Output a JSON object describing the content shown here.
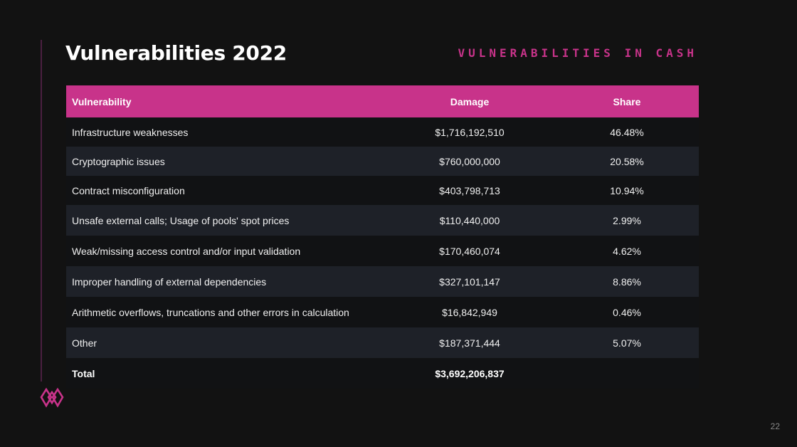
{
  "slide": {
    "title": "Vulnerabilities 2022",
    "subtitle": "VULNERABILITIES IN CASH",
    "page_number": "22",
    "accent_color": "#c8338a",
    "background_color": "#121212",
    "logo_icon": "diamond-lattice-logo-icon"
  },
  "table": {
    "headers": {
      "vulnerability": "Vulnerability",
      "damage": "Damage",
      "share": "Share"
    },
    "rows": [
      {
        "vulnerability": "Infrastructure weaknesses",
        "damage": "$1,716,192,510",
        "share": "46.48%"
      },
      {
        "vulnerability": "Cryptographic issues",
        "damage": "$760,000,000",
        "share": "20.58%"
      },
      {
        "vulnerability": "Contract misconfiguration",
        "damage": "$403,798,713",
        "share": "10.94%"
      },
      {
        "vulnerability": "Unsafe external calls; Usage of pools' spot prices",
        "damage": "$110,440,000",
        "share": "2.99%"
      },
      {
        "vulnerability": "Weak/missing access control and/or input validation",
        "damage": "$170,460,074",
        "share": "4.62%"
      },
      {
        "vulnerability": "Improper handling of external dependencies",
        "damage": "$327,101,147",
        "share": "8.86%"
      },
      {
        "vulnerability": "Arithmetic overflows, truncations and other errors in calculation",
        "damage": "$16,842,949",
        "share": "0.46%"
      },
      {
        "vulnerability": "Other",
        "damage": "$187,371,444",
        "share": "5.07%"
      }
    ],
    "total": {
      "label": "Total",
      "damage": "$3,692,206,837",
      "share": ""
    }
  }
}
